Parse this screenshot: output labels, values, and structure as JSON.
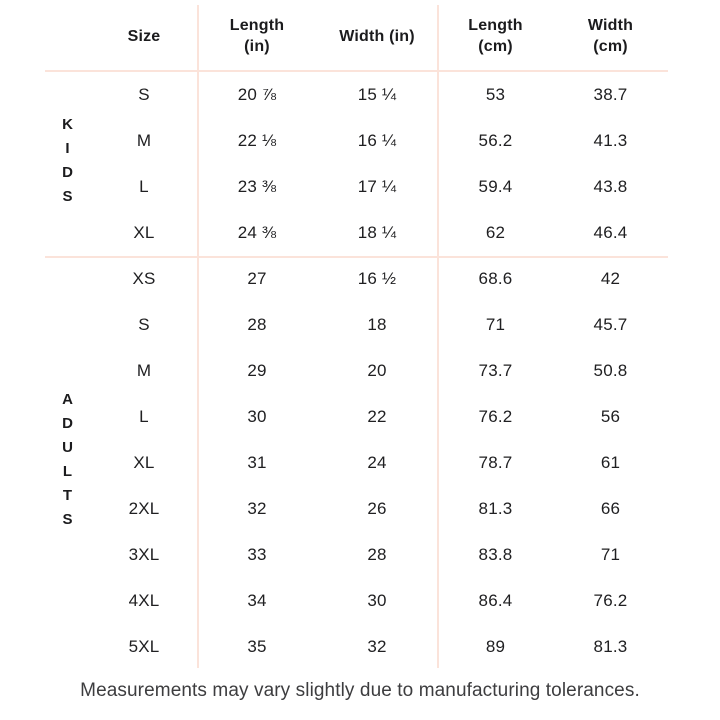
{
  "table": {
    "headers": {
      "size": [
        "Size"
      ],
      "length_in": [
        "Length",
        "(in)"
      ],
      "width_in": [
        "Width (in)"
      ],
      "length_cm": [
        "Length",
        "(cm)"
      ],
      "width_cm": [
        "Width",
        "(cm)"
      ]
    },
    "sections": [
      {
        "label": "KIDS",
        "rows": [
          {
            "size": "S",
            "length_in": "20 ⅞",
            "width_in": "15 ¼",
            "length_cm": "53",
            "width_cm": "38.7"
          },
          {
            "size": "M",
            "length_in": "22 ⅛",
            "width_in": "16 ¼",
            "length_cm": "56.2",
            "width_cm": "41.3"
          },
          {
            "size": "L",
            "length_in": "23 ⅜",
            "width_in": "17 ¼",
            "length_cm": "59.4",
            "width_cm": "43.8"
          },
          {
            "size": "XL",
            "length_in": "24 ⅜",
            "width_in": "18 ¼",
            "length_cm": "62",
            "width_cm": "46.4"
          }
        ]
      },
      {
        "label": "ADULTS",
        "rows": [
          {
            "size": "XS",
            "length_in": "27",
            "width_in": "16 ½",
            "length_cm": "68.6",
            "width_cm": "42"
          },
          {
            "size": "S",
            "length_in": "28",
            "width_in": "18",
            "length_cm": "71",
            "width_cm": "45.7"
          },
          {
            "size": "M",
            "length_in": "29",
            "width_in": "20",
            "length_cm": "73.7",
            "width_cm": "50.8"
          },
          {
            "size": "L",
            "length_in": "30",
            "width_in": "22",
            "length_cm": "76.2",
            "width_cm": "56"
          },
          {
            "size": "XL",
            "length_in": "31",
            "width_in": "24",
            "length_cm": "78.7",
            "width_cm": "61"
          },
          {
            "size": "2XL",
            "length_in": "32",
            "width_in": "26",
            "length_cm": "81.3",
            "width_cm": "66"
          },
          {
            "size": "3XL",
            "length_in": "33",
            "width_in": "28",
            "length_cm": "83.8",
            "width_cm": "71"
          },
          {
            "size": "4XL",
            "length_in": "34",
            "width_in": "30",
            "length_cm": "86.4",
            "width_cm": "76.2"
          },
          {
            "size": "5XL",
            "length_in": "35",
            "width_in": "32",
            "length_cm": "89",
            "width_cm": "81.3"
          }
        ]
      }
    ]
  },
  "footer": {
    "note": "Measurements may vary slightly due to manufacturing tolerances."
  },
  "colors": {
    "grid_line": "#fbe3da",
    "table_text": "#1c1c1e",
    "footnote_text": "#3d3d3f",
    "background": "#ffffff"
  },
  "chart_data": {
    "type": "table",
    "columns": [
      "Size",
      "Length (in)",
      "Width (in)",
      "Length (cm)",
      "Width (cm)"
    ],
    "row_groups": [
      {
        "group": "KIDS",
        "rows": [
          [
            "S",
            "20 ⅞",
            "15 ¼",
            "53",
            "38.7"
          ],
          [
            "M",
            "22 ⅛",
            "16 ¼",
            "56.2",
            "41.3"
          ],
          [
            "L",
            "23 ⅜",
            "17 ¼",
            "59.4",
            "43.8"
          ],
          [
            "XL",
            "24 ⅜",
            "18 ¼",
            "62",
            "46.4"
          ]
        ]
      },
      {
        "group": "ADULTS",
        "rows": [
          [
            "XS",
            "27",
            "16 ½",
            "68.6",
            "42"
          ],
          [
            "S",
            "28",
            "18",
            "71",
            "45.7"
          ],
          [
            "M",
            "29",
            "20",
            "73.7",
            "50.8"
          ],
          [
            "L",
            "30",
            "22",
            "76.2",
            "56"
          ],
          [
            "XL",
            "31",
            "24",
            "78.7",
            "61"
          ],
          [
            "2XL",
            "32",
            "26",
            "81.3",
            "66"
          ],
          [
            "3XL",
            "33",
            "28",
            "83.8",
            "71"
          ],
          [
            "4XL",
            "34",
            "30",
            "86.4",
            "76.2"
          ],
          [
            "5XL",
            "35",
            "32",
            "89",
            "81.3"
          ]
        ]
      }
    ],
    "footnote": "Measurements may vary slightly due to manufacturing tolerances."
  }
}
